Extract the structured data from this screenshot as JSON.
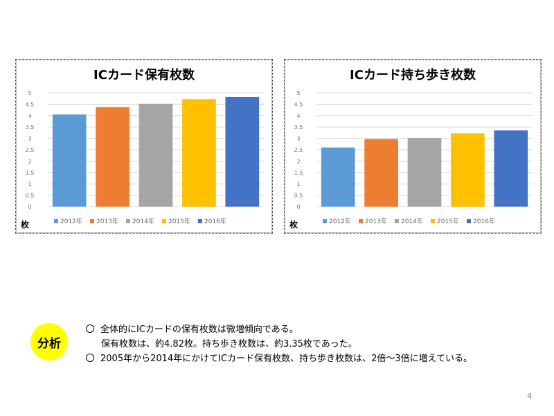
{
  "chart_data": [
    {
      "type": "bar",
      "title": "ICカード保有枚数",
      "unit_label": "枚",
      "categories": [
        "2012年",
        "2013年",
        "2014年",
        "2015年",
        "2016年"
      ],
      "values": [
        4.05,
        4.38,
        4.52,
        4.72,
        4.82
      ],
      "ylim": [
        0,
        5
      ],
      "yticks": [
        "0",
        "0.5",
        "1",
        "1.5",
        "2",
        "2.5",
        "3",
        "3.5",
        "4",
        "4.5",
        "5"
      ],
      "colors": [
        "#5b9bd5",
        "#ed7d31",
        "#a5a5a5",
        "#ffc000",
        "#4472c4"
      ],
      "grid": true,
      "legend": "bottom"
    },
    {
      "type": "bar",
      "title": "ICカード持ち歩き枚数",
      "unit_label": "枚",
      "categories": [
        "2012年",
        "2013年",
        "2014年",
        "2015年",
        "2016年"
      ],
      "values": [
        2.6,
        2.97,
        3.02,
        3.22,
        3.35
      ],
      "ylim": [
        0,
        5
      ],
      "yticks": [
        "0",
        "0.5",
        "1",
        "1.5",
        "2",
        "2.5",
        "3",
        "3.5",
        "4",
        "4.5",
        "5"
      ],
      "colors": [
        "#5b9bd5",
        "#ed7d31",
        "#a5a5a5",
        "#ffc000",
        "#4472c4"
      ],
      "grid": true,
      "legend": "bottom"
    }
  ],
  "analysis": {
    "badge": "分析",
    "line1": "全体的にICカードの保有枚数は微増傾向である。",
    "line2": "保有枚数は、約4.82枚。持ち歩き枚数は、約3.35枚であった。",
    "line3": "2005年から2014年にかけてICカード保有枚数、持ち歩き枚数は、2倍～3倍に増えている。"
  },
  "page_number": "4"
}
